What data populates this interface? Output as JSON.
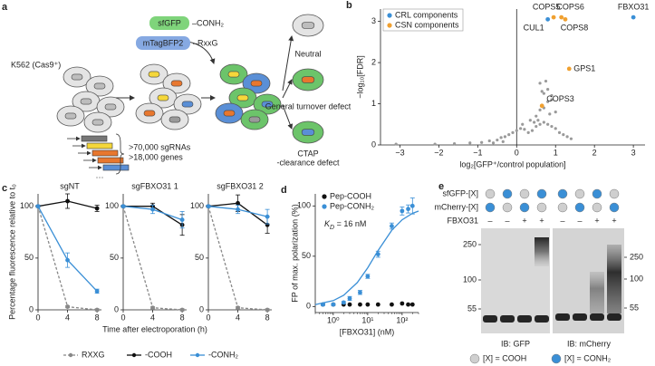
{
  "panel_a": {
    "letter": "a",
    "cell_line": "K562 (Cas9⁺)",
    "reporters": [
      {
        "name": "sfGFP",
        "tag": "–CONH₂",
        "color": "#7fd47b"
      },
      {
        "name": "mTagBFP2",
        "tag": "–RxxG",
        "color": "#86a9e2"
      }
    ],
    "library": [
      ">70,000 sgRNAs",
      ">18,000 genes"
    ],
    "outcomes": [
      [
        "Neutral"
      ],
      [
        "General turnover defect"
      ],
      [
        "CTAP",
        "-clearance defect"
      ]
    ]
  },
  "chart_data": [
    {
      "panel": "b",
      "type": "scatter",
      "xlabel": "log₂[GFP⁺/control population]",
      "ylabel": "−log₁₀[FDR]",
      "xlim": [
        -3.5,
        3.3
      ],
      "xticks": [
        {
          "value": -3,
          "label": "−3"
        },
        {
          "value": -2,
          "label": "−2"
        },
        {
          "value": -1,
          "label": "−1"
        },
        0,
        1,
        2,
        3
      ],
      "ylim": [
        0,
        3.3
      ],
      "yticks": [
        0,
        1,
        2,
        3
      ],
      "legend": "upper left",
      "series": [
        {
          "color": "#9a9a9a",
          "x": [
            -3.1,
            -2.1,
            -1.6,
            -1.2,
            -0.9,
            -0.7,
            -0.5,
            -0.4,
            -0.3,
            -0.2,
            -0.1,
            0,
            0.1,
            0.2,
            0.3,
            0.4,
            0.5,
            0.6,
            0.7,
            0.8,
            0.9,
            1.0,
            1.1,
            1.2,
            1.4,
            0.5,
            0.6,
            0.7,
            0.8,
            0.9,
            0.7,
            0.8,
            0.6,
            0.9,
            1.0,
            0.55,
            0.75,
            0.85,
            0.65,
            0.45,
            -0.6,
            -0.35,
            0.15,
            0.35,
            1.3
          ],
          "values": [
            0.02,
            0.02,
            0.03,
            0.05,
            0.06,
            0.1,
            0.12,
            0.18,
            0.2,
            0.25,
            0.3,
            0.35,
            0.4,
            0.38,
            0.3,
            0.35,
            0.45,
            0.5,
            0.55,
            0.5,
            0.45,
            0.4,
            0.3,
            0.25,
            0.15,
            0.7,
            0.85,
            0.9,
            1.05,
            1.1,
            1.25,
            1.35,
            1.5,
            1.2,
            0.8,
            0.6,
            1.55,
            0.75,
            1.3,
            0.55,
            0.05,
            0.08,
            0.5,
            0.6,
            0.2
          ]
        },
        {
          "name": "CRL components",
          "color": "#3a8fd6",
          "x": [
            0.8,
            3.0
          ],
          "values": [
            3.05,
            3.1
          ],
          "labels": [
            "CUL1",
            "FBXO31"
          ]
        },
        {
          "name": "CSN components",
          "color": "#f0a030",
          "x": [
            0.95,
            1.15,
            1.25,
            1.35,
            0.65
          ],
          "values": [
            3.1,
            3.1,
            3.05,
            1.85,
            0.95
          ],
          "labels": [
            "COPS5",
            "COPS6",
            "COPS8",
            "GPS1",
            "COPS3"
          ]
        }
      ]
    },
    {
      "type": "line",
      "title": "sgNT",
      "x": [
        0,
        4,
        8
      ],
      "xlim": [
        0,
        8.6
      ],
      "xticks": [
        0,
        4,
        8
      ],
      "ylim": [
        0,
        112
      ],
      "yticks": [
        0,
        50,
        100
      ],
      "series": [
        {
          "name": "RXXG",
          "color": "#888888",
          "dash": true,
          "values": [
            100,
            3,
            0
          ],
          "errors": [
            1,
            1,
            1
          ]
        },
        {
          "name": "-COOH",
          "color": "#111111",
          "values": [
            100,
            105,
            98
          ],
          "errors": [
            1,
            7,
            3
          ]
        },
        {
          "name": "-CONH₂",
          "color": "#3a8fd6",
          "values": [
            100,
            48,
            18
          ],
          "errors": [
            1,
            7,
            2
          ]
        }
      ]
    },
    {
      "type": "line",
      "title": "sgFBXO31 1",
      "x": [
        0,
        4,
        8
      ],
      "xlim": [
        0,
        8.6
      ],
      "xticks": [
        0,
        4,
        8
      ],
      "ylim": [
        0,
        112
      ],
      "yticks": [
        0,
        50,
        100
      ],
      "series": [
        {
          "color": "#888888",
          "dash": true,
          "values": [
            100,
            2,
            0
          ],
          "errors": [
            1,
            1,
            1
          ]
        },
        {
          "color": "#111111",
          "values": [
            100,
            100,
            82
          ],
          "errors": [
            1,
            3,
            10
          ]
        },
        {
          "color": "#3a8fd6",
          "values": [
            100,
            97,
            87
          ],
          "errors": [
            1,
            4,
            8
          ]
        }
      ]
    },
    {
      "type": "line",
      "title": "sgFBXO31 2",
      "x": [
        0,
        4,
        8
      ],
      "xlim": [
        0,
        8.6
      ],
      "xticks": [
        0,
        4,
        8
      ],
      "ylim": [
        0,
        112
      ],
      "yticks": [
        0,
        50,
        100
      ],
      "series": [
        {
          "color": "#888888",
          "dash": true,
          "values": [
            100,
            2,
            0
          ],
          "errors": [
            1,
            1,
            1
          ]
        },
        {
          "color": "#111111",
          "values": [
            100,
            103,
            82
          ],
          "errors": [
            1,
            8,
            8
          ]
        },
        {
          "color": "#3a8fd6",
          "values": [
            100,
            97,
            90
          ],
          "errors": [
            1,
            4,
            7
          ]
        }
      ]
    },
    {
      "panel": "d",
      "type": "scatter",
      "log_x": true,
      "xlabel": "[FBXO31] (nM)",
      "ylabel": "FP of max. polarization (%)",
      "x": [
        0.5,
        1,
        2,
        3,
        6,
        10,
        20,
        50,
        100,
        150,
        200
      ],
      "xlim": [
        0.3,
        300
      ],
      "xticks": [
        {
          "value": 1,
          "label": "10⁰"
        },
        {
          "value": 10,
          "label": "10¹"
        },
        {
          "value": 100,
          "label": "10²"
        }
      ],
      "ylim": [
        -6,
        112
      ],
      "yticks": [
        0,
        50,
        100
      ],
      "legend": "upper left",
      "annotation": [
        "K",
        "D",
        " = 16 nM"
      ],
      "series": [
        {
          "name": "Pep-COOH",
          "color": "#111111",
          "values": [
            2,
            2,
            2,
            2,
            2,
            2,
            2,
            2,
            3,
            2,
            2
          ]
        },
        {
          "name": "Pep-CONH₂",
          "color": "#3a8fd6",
          "values": [
            2,
            2,
            4,
            8,
            14,
            30,
            52,
            80,
            95,
            97,
            100
          ],
          "errors": [
            1,
            1,
            1,
            2,
            2,
            2,
            3,
            3,
            4,
            4,
            8
          ]
        },
        {
          "kind": "line",
          "color": "#3a8fd6",
          "x": [
            0.3,
            1,
            2,
            5,
            10,
            20,
            50,
            100,
            200,
            300
          ],
          "values": [
            1.8,
            5.9,
            11.1,
            23.8,
            38.5,
            55.6,
            75.8,
            86.2,
            92.6,
            94.9
          ]
        }
      ]
    }
  ],
  "panel_c": {
    "letter": "c",
    "xlabel": "Time after electroporation (h)",
    "ylabel": "Percentage fluorescence relative to t₀"
  },
  "panel_e": {
    "letter": "e",
    "rows": [
      {
        "label": "sfGFP-[X]",
        "colors": [
          "#cfcfcf",
          "#3a8fd6",
          "#cfcfcf",
          "#3a8fd6",
          "#3a8fd6",
          "#cfcfcf",
          "#3a8fd6",
          "#cfcfcf"
        ]
      },
      {
        "label": "mCherry-[X]",
        "colors": [
          "#3a8fd6",
          "#cfcfcf",
          "#3a8fd6",
          "#cfcfcf",
          "#cfcfcf",
          "#3a8fd6",
          "#cfcfcf",
          "#3a8fd6"
        ]
      }
    ],
    "fbxo31_label": "FBXO31",
    "fbxo31": [
      "–",
      "–",
      "+",
      "+",
      "–",
      "–",
      "+",
      "+"
    ],
    "markers_left": [
      "250",
      "100",
      "55"
    ],
    "markers_right": [
      "250",
      "100",
      "55"
    ],
    "captions": [
      "IB: GFP",
      "IB: mCherry"
    ],
    "legend": [
      {
        "label": "[X] = COOH",
        "color": "#cfcfcf"
      },
      {
        "label": "[X] = CONH₂",
        "color": "#3a8fd6"
      }
    ]
  }
}
